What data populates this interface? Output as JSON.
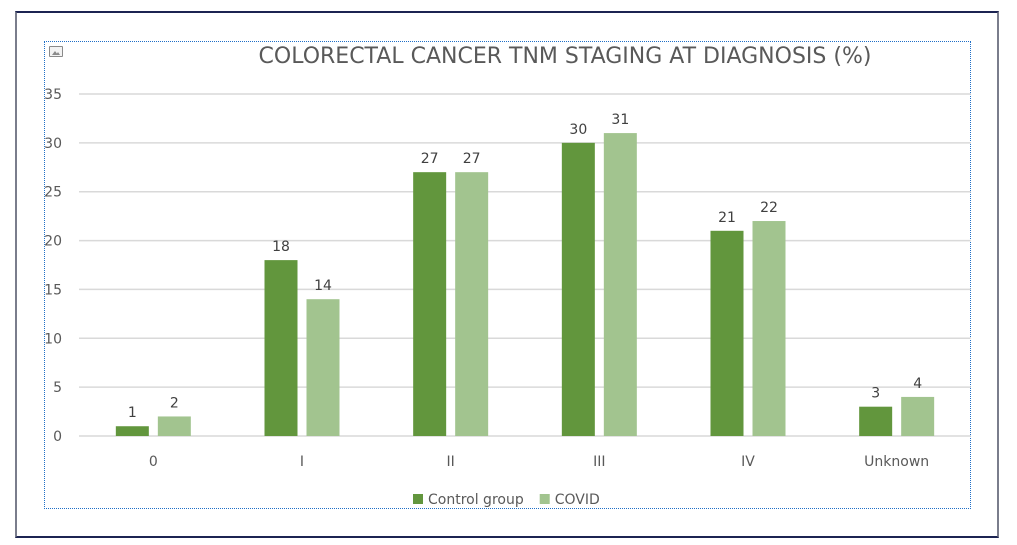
{
  "chart_data": {
    "type": "bar",
    "title": "COLORECTAL CANCER TNM STAGING AT DIAGNOSIS (%)",
    "xlabel": "",
    "ylabel": "",
    "categories": [
      "0",
      "I",
      "II",
      "III",
      "IV",
      "Unknown"
    ],
    "series": [
      {
        "name": "Control group",
        "color": "#62963d",
        "values": [
          1,
          18,
          27,
          30,
          21,
          3
        ]
      },
      {
        "name": "COVID",
        "color": "#a2c48f",
        "values": [
          2,
          14,
          27,
          31,
          22,
          4
        ]
      }
    ],
    "ylim": [
      0,
      35
    ],
    "yticks": [
      0,
      5,
      10,
      15,
      20,
      25,
      30,
      35
    ],
    "grid": true,
    "data_labels": true,
    "legend_position": "bottom"
  }
}
